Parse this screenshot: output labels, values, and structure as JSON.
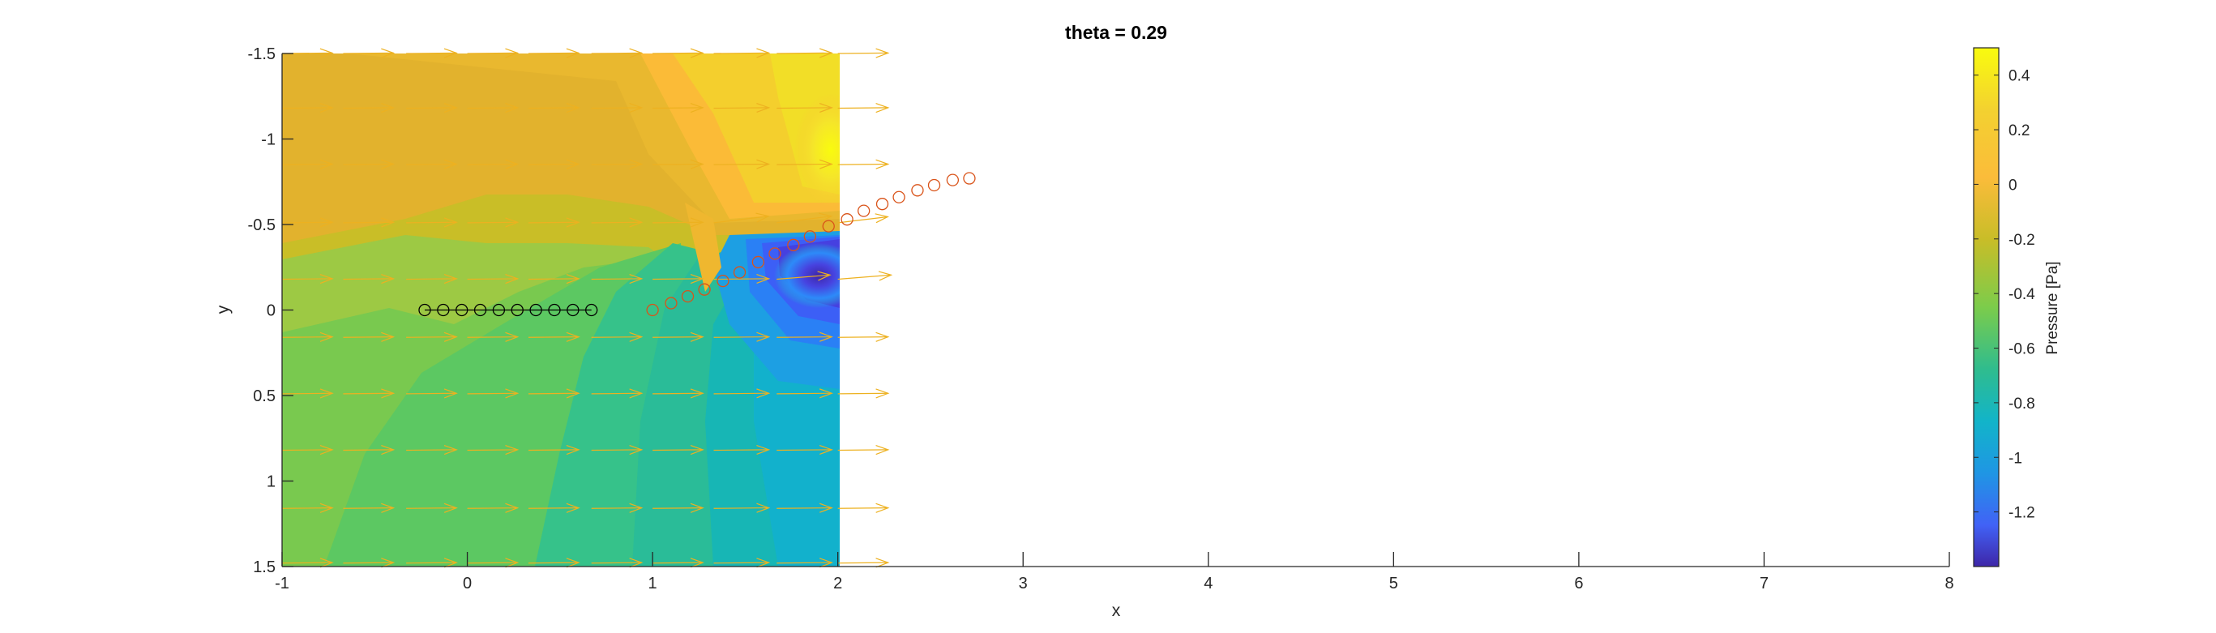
{
  "chart_data": {
    "type": "heatmap",
    "title": "theta = 0.29",
    "xlabel": "x",
    "ylabel": "y",
    "xlim": [
      -1,
      8
    ],
    "ylim": [
      -1.5,
      1.5
    ],
    "y_axis_direction": "reversed",
    "grid": false,
    "x_ticks": [
      "-1",
      "0",
      "1",
      "2",
      "3",
      "4",
      "5",
      "6",
      "7",
      "8"
    ],
    "y_ticks": [
      "-1.5",
      "-1",
      "-0.5",
      "0",
      "0.5",
      "1",
      "1.5"
    ],
    "field": {
      "name": "Pressure [Pa]",
      "x_extent": [
        -1,
        2
      ],
      "y_extent": [
        -1.5,
        1.5
      ],
      "colormap": "parula",
      "colorbar_range": [
        -1.4,
        0.5
      ],
      "colorbar_ticks": [
        "0.4",
        "0.2",
        "0",
        "-0.2",
        "-0.4",
        "-0.6",
        "-0.8",
        "-1",
        "-1.2"
      ],
      "colorbar_label": "Pressure [Pa]"
    },
    "quiver": {
      "color": "#EDB120",
      "rows_y": [
        -1.5,
        -1.18,
        -0.85,
        -0.51,
        -0.18,
        0.16,
        0.49,
        0.82,
        1.16,
        1.48
      ],
      "cols_x": [
        -1,
        -0.67,
        -0.33,
        0,
        0.33,
        0.67,
        1,
        1.33,
        1.67,
        2
      ]
    },
    "series": [
      {
        "marker": "circle",
        "color": "#000000",
        "line": true,
        "x": [
          -0.23,
          -0.13,
          -0.03,
          0.07,
          0.17,
          0.27,
          0.37,
          0.47,
          0.57,
          0.67
        ],
        "y": [
          0,
          0,
          0,
          0,
          0,
          0,
          0,
          0,
          0,
          0
        ]
      },
      {
        "marker": "circle",
        "color": "#D95319",
        "line": false,
        "x": [
          1.0,
          1.1,
          1.19,
          1.28,
          1.38,
          1.47,
          1.57,
          1.66,
          1.76,
          1.85,
          1.95,
          2.05,
          2.14,
          2.24,
          2.33,
          2.43,
          2.52,
          2.62,
          2.71
        ],
        "y": [
          0,
          -0.04,
          -0.08,
          -0.12,
          -0.17,
          -0.22,
          -0.28,
          -0.33,
          -0.38,
          -0.43,
          -0.49,
          -0.53,
          -0.58,
          -0.62,
          -0.66,
          -0.7,
          -0.73,
          -0.76,
          -0.77
        ]
      }
    ]
  }
}
